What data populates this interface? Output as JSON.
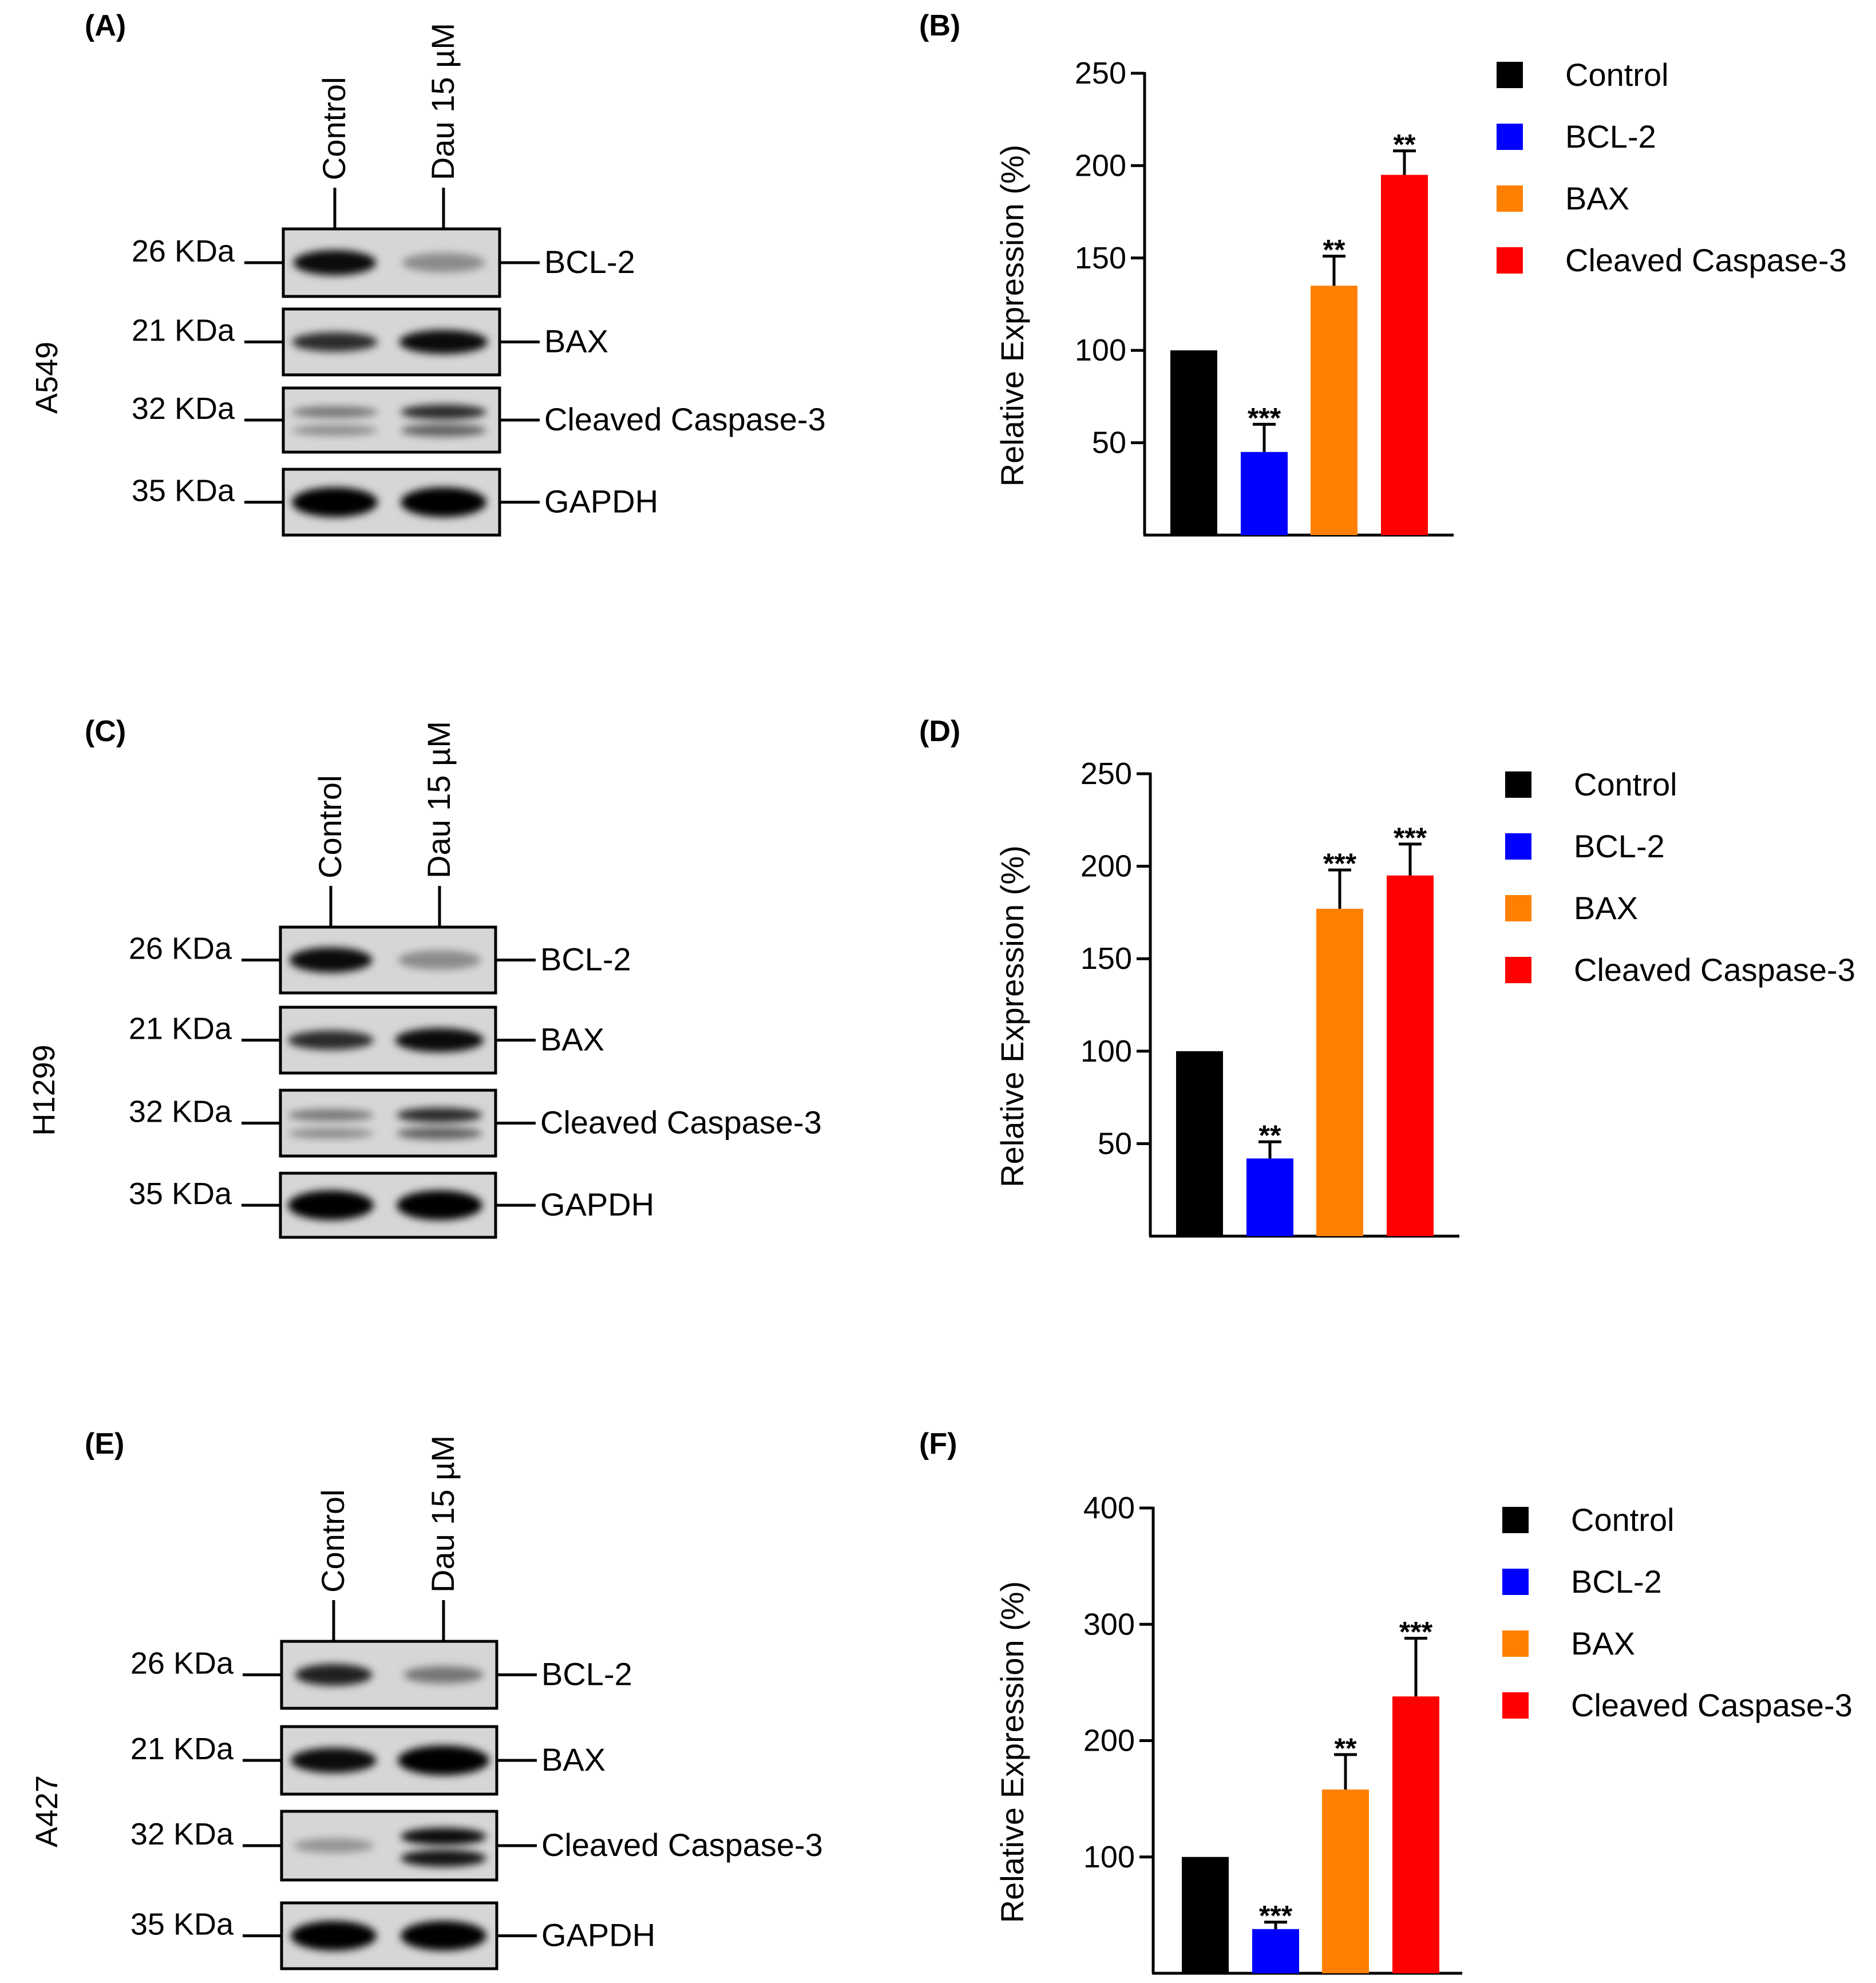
{
  "figure": {
    "blots": [
      {
        "panel_label": "(A)",
        "cell_line": "A549",
        "lanes": [
          "Control",
          "Dau 15 µM"
        ],
        "rows": [
          {
            "kda": "26 KDa",
            "protein": "BCL-2"
          },
          {
            "kda": "21 KDa",
            "protein": "BAX"
          },
          {
            "kda": "32 KDa",
            "protein": "Cleaved Caspase-3"
          },
          {
            "kda": "35 KDa",
            "protein": "GAPDH"
          }
        ]
      },
      {
        "panel_label": "(C)",
        "cell_line": "H1299",
        "lanes": [
          "Control",
          "Dau 15 µM"
        ],
        "rows": [
          {
            "kda": "26 KDa",
            "protein": "BCL-2"
          },
          {
            "kda": "21 KDa",
            "protein": "BAX"
          },
          {
            "kda": "32 KDa",
            "protein": "Cleaved Caspase-3"
          },
          {
            "kda": "35 KDa",
            "protein": "GAPDH"
          }
        ]
      },
      {
        "panel_label": "(E)",
        "cell_line": "A427",
        "lanes": [
          "Control",
          "Dau 15 µM"
        ],
        "rows": [
          {
            "kda": "26 KDa",
            "protein": "BCL-2"
          },
          {
            "kda": "21 KDa",
            "protein": "BAX"
          },
          {
            "kda": "32 KDa",
            "protein": "Cleaved Caspase-3"
          },
          {
            "kda": "35 KDa",
            "protein": "GAPDH"
          }
        ]
      }
    ]
  },
  "chart_data": [
    {
      "panel_label": "(B)",
      "type": "bar",
      "ylabel": "Relative Expression (%)",
      "ylim": [
        0,
        250
      ],
      "yticks": [
        50,
        100,
        150,
        200,
        250
      ],
      "categories": [
        "Control",
        "BCL-2",
        "BAX",
        "Cleaved Caspase-3"
      ],
      "values": [
        100,
        45,
        135,
        195
      ],
      "errors": [
        0,
        15,
        16,
        13
      ],
      "significance": [
        "",
        "***",
        "**",
        "**"
      ],
      "colors": [
        "#000000",
        "#0000ff",
        "#ff8000",
        "#ff0000"
      ],
      "legend": [
        "Control",
        "BCL-2",
        "BAX",
        "Cleaved Caspase-3"
      ]
    },
    {
      "panel_label": "(D)",
      "type": "bar",
      "ylabel": "Relative Expression (%)",
      "ylim": [
        0,
        250
      ],
      "yticks": [
        50,
        100,
        150,
        200,
        250
      ],
      "categories": [
        "Control",
        "BCL-2",
        "BAX",
        "Cleaved Caspase-3"
      ],
      "values": [
        100,
        42,
        177,
        195
      ],
      "errors": [
        0,
        9,
        21,
        17
      ],
      "significance": [
        "",
        "**",
        "***",
        "***"
      ],
      "colors": [
        "#000000",
        "#0000ff",
        "#ff8000",
        "#ff0000"
      ],
      "legend": [
        "Control",
        "BCL-2",
        "BAX",
        "Cleaved Caspase-3"
      ]
    },
    {
      "panel_label": "(F)",
      "type": "bar",
      "ylabel": "Relative Expression (%)",
      "ylim": [
        0,
        400
      ],
      "yticks": [
        100,
        200,
        300,
        400
      ],
      "categories": [
        "Control",
        "BCL-2",
        "BAX",
        "Cleaved Caspase-3"
      ],
      "values": [
        100,
        38,
        158,
        238
      ],
      "errors": [
        0,
        6,
        30,
        50
      ],
      "significance": [
        "",
        "***",
        "**",
        "***"
      ],
      "colors": [
        "#000000",
        "#0000ff",
        "#ff8000",
        "#ff0000"
      ],
      "legend": [
        "Control",
        "BCL-2",
        "BAX",
        "Cleaved Caspase-3"
      ]
    }
  ]
}
